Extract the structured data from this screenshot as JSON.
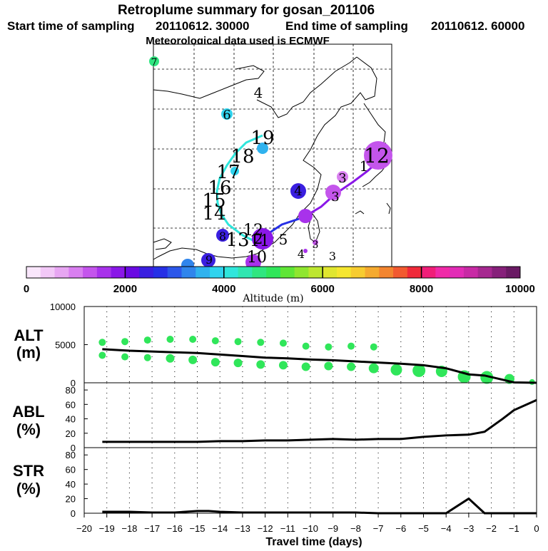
{
  "header": {
    "title": "Retroplume summary for gosan_201106",
    "start_label": "Start time of sampling",
    "start_value": "20110612. 30000",
    "end_label": "End time of sampling",
    "end_value": "20110612. 60000",
    "met_line": "Meteorological data used is ECMWF"
  },
  "colorbar": {
    "ticks": [
      "0",
      "2000",
      "4000",
      "6000",
      "8000",
      "10000"
    ],
    "label": "Altitude (m)",
    "colors": [
      "#f9e6fb",
      "#f2c8f7",
      "#e7a6f2",
      "#d97ff0",
      "#c455ec",
      "#a832eb",
      "#8a17e8",
      "#6a0ae3",
      "#3a1fe0",
      "#2630e6",
      "#2c57ea",
      "#2f85ec",
      "#2fb2ee",
      "#2fd3ee",
      "#2fe6dc",
      "#2fe6b0",
      "#2fe680",
      "#30e65a",
      "#5fe636",
      "#8fe62f",
      "#bde62f",
      "#e0e62f",
      "#f5e62f",
      "#f7cc2f",
      "#f5aa2f",
      "#f3852f",
      "#f25a30",
      "#f02a3a",
      "#f01e78",
      "#f02aa8",
      "#e22cb6",
      "#c82aa5",
      "#a62890",
      "#86207a",
      "#6a1a64"
    ]
  },
  "map_labels": [
    {
      "text": "4",
      "color": "#000"
    },
    {
      "text": "6",
      "color": "#000"
    },
    {
      "text": "7",
      "color": "#000"
    },
    {
      "text": "19",
      "color": "#000"
    },
    {
      "text": "18",
      "color": "#000"
    },
    {
      "text": "17",
      "color": "#000"
    },
    {
      "text": "16",
      "color": "#000"
    },
    {
      "text": "15",
      "color": "#000"
    },
    {
      "text": "14",
      "color": "#000"
    },
    {
      "text": "13",
      "color": "#000"
    },
    {
      "text": "12",
      "color": "#000"
    },
    {
      "text": "11",
      "color": "#000"
    },
    {
      "text": "10",
      "color": "#000"
    },
    {
      "text": "8",
      "color": "#000"
    },
    {
      "text": "9",
      "color": "#000"
    },
    {
      "text": "5",
      "color": "#000"
    },
    {
      "text": "4",
      "color": "#000"
    },
    {
      "text": "3",
      "color": "#000"
    },
    {
      "text": "3",
      "color": "#000"
    },
    {
      "text": "2",
      "color": "#000"
    },
    {
      "text": "1",
      "color": "#000"
    },
    {
      "text": "12",
      "color": "#000"
    },
    {
      "text": "4",
      "color": "#000"
    },
    {
      "text": "3",
      "color": "#000"
    },
    {
      "text": "3",
      "color": "#000"
    }
  ],
  "chart_data": [
    {
      "type": "scatter+line",
      "ylabel": "ALT\n(m)",
      "ylabel_line1": "ALT",
      "ylabel_line2": "(m)",
      "ylim": [
        0,
        10000
      ],
      "yticks": [
        "10000",
        "5000",
        "0"
      ],
      "mean_line": {
        "x": [
          -19.2,
          -18,
          -17,
          -16,
          -15,
          -14,
          -13,
          -12,
          -11,
          -10,
          -9,
          -8,
          -7,
          -6,
          -5,
          -4,
          -3,
          -2.3,
          -1.5,
          -1,
          0
        ],
        "y": [
          4400,
          4200,
          4100,
          4000,
          3900,
          3700,
          3500,
          3300,
          3200,
          3050,
          2950,
          2800,
          2650,
          2500,
          2300,
          1900,
          1100,
          950,
          400,
          50,
          0
        ]
      },
      "upper_dots": {
        "x": [
          -19.2,
          -18.2,
          -17.2,
          -16.2,
          -15.2,
          -14.2,
          -13.2,
          -12.2,
          -11.2,
          -10.2,
          -9.2,
          -8.2,
          -7.2
        ],
        "y": [
          5300,
          5400,
          5600,
          5700,
          5700,
          5500,
          5400,
          5300,
          5200,
          4800,
          4700,
          4800,
          4700
        ]
      },
      "lower_dots": {
        "x": [
          -19.2,
          -18.2,
          -17.2,
          -16.2,
          -15.2,
          -14.2,
          -13.2,
          -12.2,
          -11.2,
          -10.2,
          -9.2,
          -8.2,
          -7.2,
          -6.2,
          -5.2,
          -4.2,
          -3.2,
          -2.2,
          -1.2,
          -0.2
        ],
        "y": [
          3600,
          3400,
          3300,
          3200,
          3000,
          2700,
          2600,
          2400,
          2300,
          2100,
          2200,
          2100,
          1900,
          1700,
          1600,
          1500,
          800,
          700,
          500,
          100
        ]
      }
    },
    {
      "type": "line",
      "ylabel_line1": "ABL",
      "ylabel_line2": "(%)",
      "ylim": [
        0,
        90
      ],
      "yticks": [
        "80",
        "60",
        "40",
        "20",
        "0"
      ],
      "x": [
        -19.2,
        -18,
        -17,
        -16,
        -15,
        -14,
        -13,
        -12,
        -11,
        -10,
        -9,
        -8,
        -7,
        -6,
        -5,
        -4,
        -3,
        -2.3,
        -1.5,
        -1,
        0
      ],
      "y": [
        8,
        8,
        8,
        8,
        8,
        9,
        9,
        10,
        10,
        11,
        12,
        11,
        12,
        12,
        15,
        17,
        18,
        22,
        40,
        52,
        66
      ]
    },
    {
      "type": "line",
      "ylabel_line1": "STR",
      "ylabel_line2": "(%)",
      "ylim": [
        0,
        90
      ],
      "yticks": [
        "80",
        "60",
        "40",
        "20",
        "0"
      ],
      "x": [
        -19.2,
        -18,
        -17,
        -16,
        -15,
        -14.5,
        -14,
        -13,
        -12,
        -11,
        -10,
        -9,
        -8,
        -7,
        -6,
        -5,
        -4,
        -3,
        -2.3,
        -1.5,
        -1,
        0
      ],
      "y": [
        2,
        2,
        1,
        1,
        3,
        3,
        2,
        1,
        1,
        1,
        1,
        1,
        1,
        0,
        0,
        0,
        0,
        20,
        0,
        0,
        0,
        0
      ]
    }
  ],
  "xaxis": {
    "label": "Travel time (days)",
    "xlim": [
      -20,
      0
    ],
    "ticks": [
      "−20",
      "−19",
      "−18",
      "−17",
      "−16",
      "−15",
      "−14",
      "−13",
      "−12",
      "−11",
      "−10",
      "−9",
      "−8",
      "−7",
      "−6",
      "−5",
      "−4",
      "−3",
      "−2",
      "−1",
      "0"
    ]
  }
}
